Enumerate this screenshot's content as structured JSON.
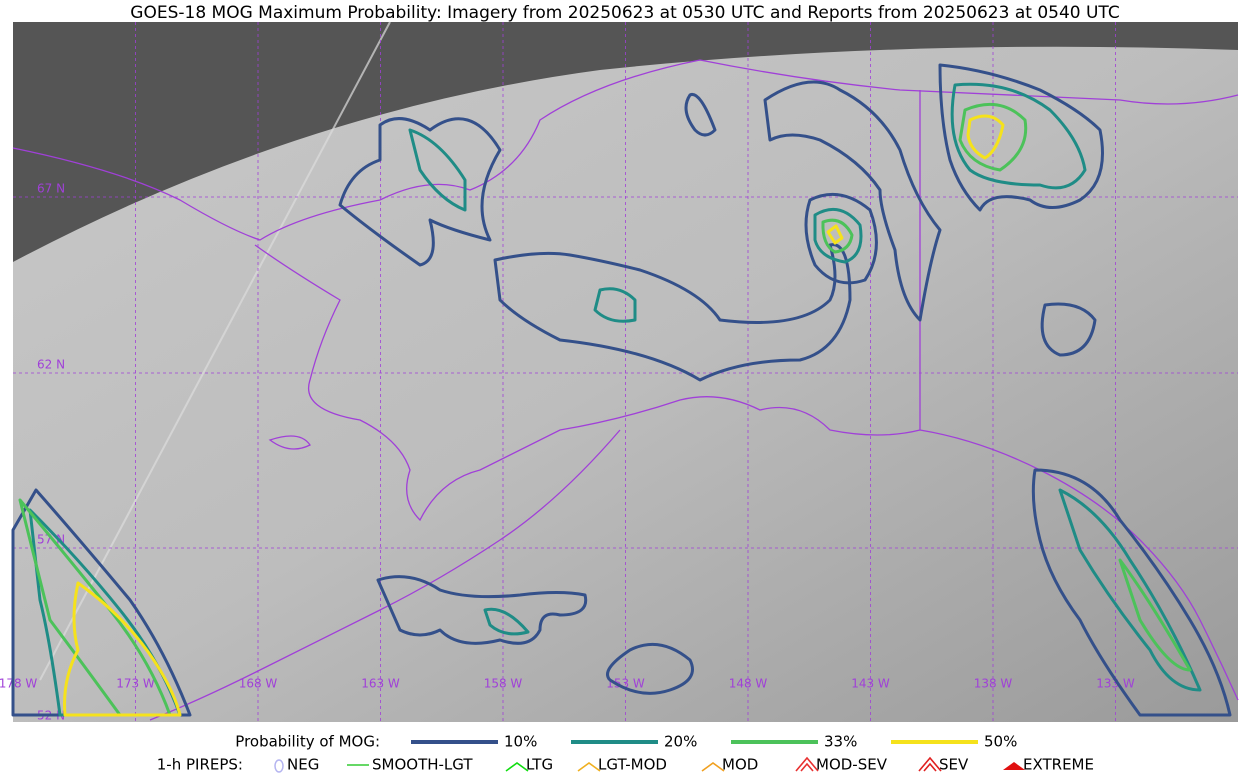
{
  "title": "GOES-18 MOG Maximum Probability: Imagery from 20250623 at 0530 UTC and Reports from 20250623 at 0540 UTC",
  "latitude_labels": [
    "67 N",
    "62 N",
    "57 N",
    "52 N"
  ],
  "longitude_labels": [
    "178 W",
    "173 W",
    "168 W",
    "163 W",
    "158 W",
    "153 W",
    "148 W",
    "143 W",
    "138 W",
    "133 W"
  ],
  "legend": {
    "probability": {
      "label": "Probability of MOG:",
      "items": [
        {
          "label": "10%",
          "color": "#34508a"
        },
        {
          "label": "20%",
          "color": "#1f8c86"
        },
        {
          "label": "33%",
          "color": "#4cc25a"
        },
        {
          "label": "50%",
          "color": "#f5e21c"
        }
      ]
    },
    "pireps": {
      "label": "1-h PIREPS:",
      "items": [
        {
          "label": "NEG",
          "color": "#b4b4f0"
        },
        {
          "label": "SMOOTH-LGT",
          "color": "#33cc33"
        },
        {
          "label": "LTG",
          "color": "#11dd11"
        },
        {
          "label": "LGT-MOD",
          "color": "#f0b020"
        },
        {
          "label": "MOD",
          "color": "#f0a020"
        },
        {
          "label": "MOD-SEV",
          "color": "#e83030"
        },
        {
          "label": "SEV",
          "color": "#e02020"
        },
        {
          "label": "EXTREME",
          "color": "#e01010"
        }
      ]
    }
  }
}
